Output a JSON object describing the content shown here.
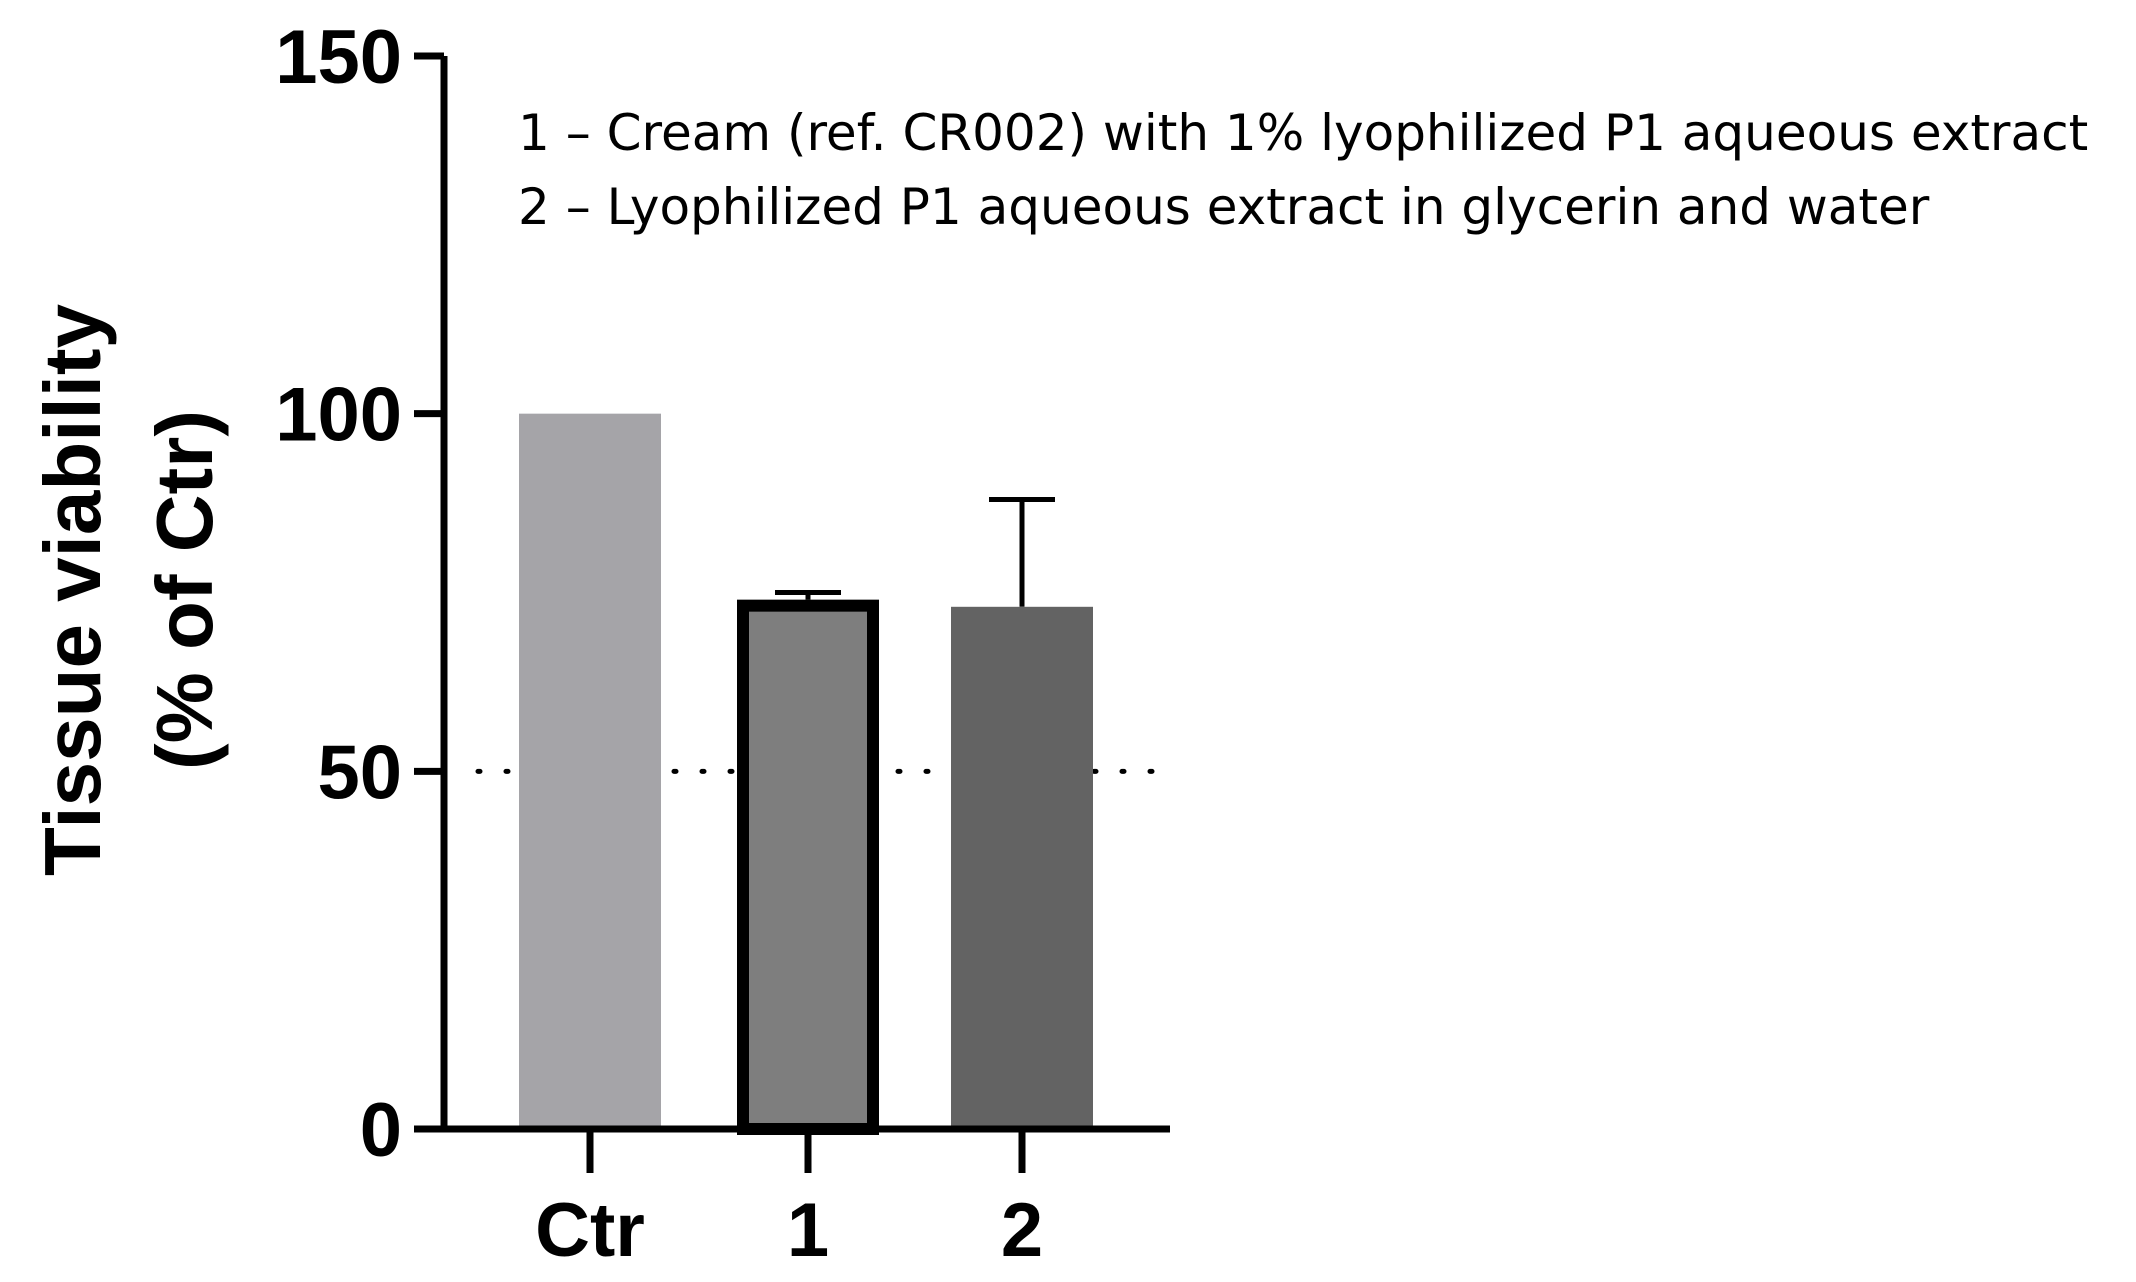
{
  "chart_data": {
    "type": "bar",
    "categories": [
      "Ctr",
      "1",
      "2"
    ],
    "values": [
      100,
      74,
      73
    ],
    "error_upper": [
      null,
      75,
      88
    ],
    "bar_colors": [
      "#a5a4a8",
      "#7e7e7e",
      "#636363"
    ],
    "outlined_bar": "1",
    "ylabel_line1": "Tissue viability",
    "ylabel_line2": "(% of Ctr)",
    "yticks": [
      "0",
      "50",
      "100",
      "150"
    ],
    "ylim": [
      0,
      150
    ],
    "reference_line": 50,
    "legend_lines": [
      "1 – Cream (ref. CR002) with 1% lyophilized P1 aqueous extract",
      "2 – Lyophilized P1 aqueous extract in glycerin and water"
    ],
    "grid": false
  }
}
